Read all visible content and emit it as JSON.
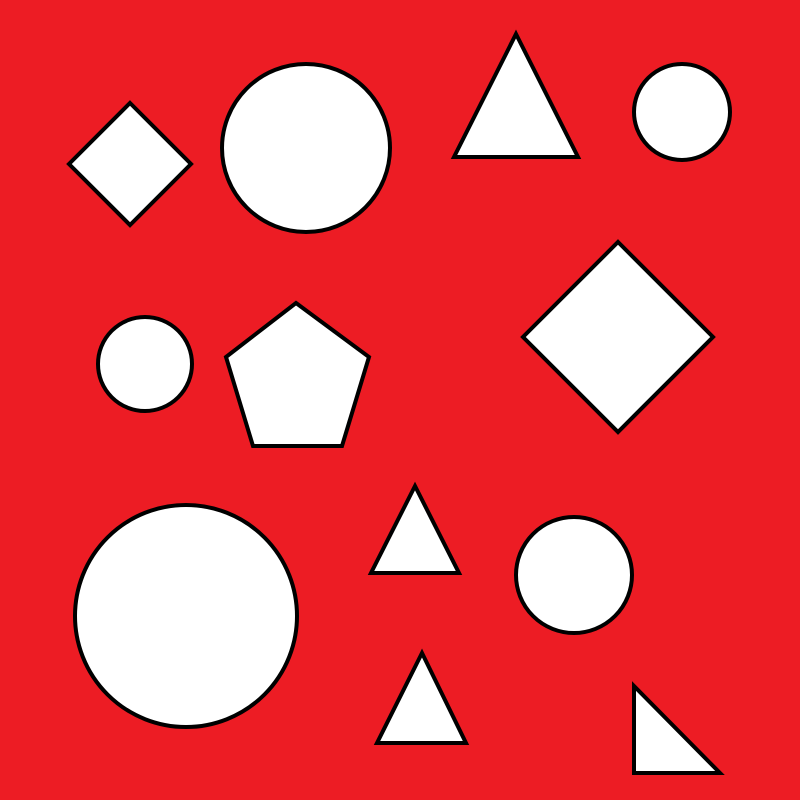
{
  "scene": {
    "background_color": "#ed1c24",
    "shape_fill": "#ffffff",
    "shape_stroke": "#000000",
    "shapes": [
      {
        "kind": "diamond",
        "size": "small"
      },
      {
        "kind": "circle",
        "size": "large"
      },
      {
        "kind": "triangle",
        "size": "medium"
      },
      {
        "kind": "circle",
        "size": "small"
      },
      {
        "kind": "circle",
        "size": "small"
      },
      {
        "kind": "pentagon",
        "size": "medium"
      },
      {
        "kind": "diamond",
        "size": "large"
      },
      {
        "kind": "triangle",
        "size": "small"
      },
      {
        "kind": "circle",
        "size": "large"
      },
      {
        "kind": "circle",
        "size": "medium"
      },
      {
        "kind": "triangle",
        "size": "small"
      },
      {
        "kind": "right-triangle",
        "size": "small"
      }
    ]
  }
}
